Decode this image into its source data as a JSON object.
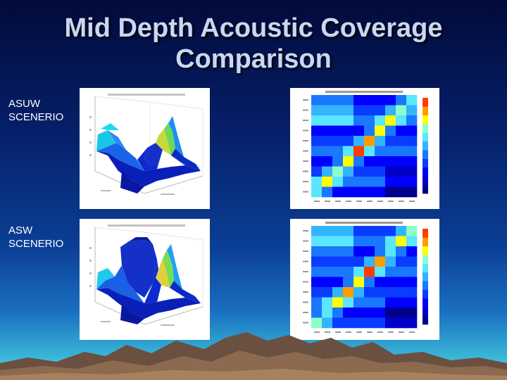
{
  "slide": {
    "title_line1": "Mid Depth Acoustic Coverage",
    "title_line2": "Comparison"
  },
  "scenarios": [
    {
      "label_line1": "ASUW",
      "label_line2": "SCENERIO"
    },
    {
      "label_line1": "ASW",
      "label_line2": "SCENERIO"
    }
  ],
  "colors": {
    "accent_title": "#c9d7f2",
    "bg_top": "#020a3a",
    "bg_bottom": "#7de0ea"
  }
}
